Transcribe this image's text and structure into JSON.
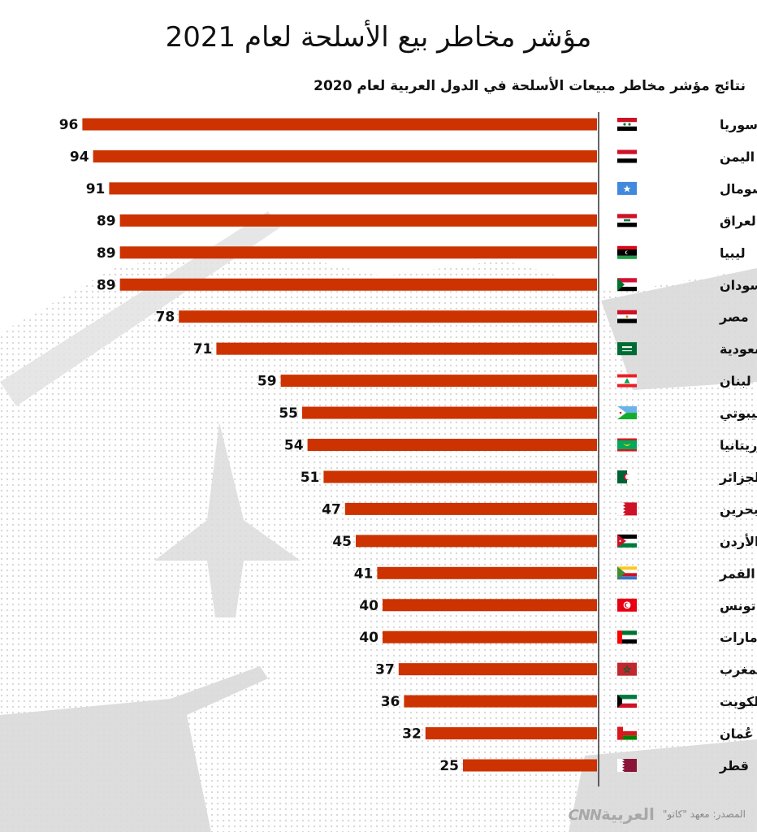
{
  "title": "مؤشر مخاطر بيع الأسلحة لعام 2021",
  "subtitle": "نتائج مؤشر مخاطر مبيعات الأسلحة في الدول العربية لعام 2020",
  "footer": {
    "source": "المصدر: معهد \"كاتو\"",
    "logo_arabic": "العربية",
    "logo_latin": "CNN"
  },
  "colors": {
    "bar": "#cc3300",
    "axis": "#333333",
    "text": "#111111"
  },
  "chart_data": {
    "type": "bar",
    "orientation": "horizontal",
    "title": "مؤشر مخاطر بيع الأسلحة لعام 2021",
    "subtitle": "نتائج مؤشر مخاطر مبيعات الأسلحة في الدول العربية لعام 2020",
    "categories": [
      "سوريا",
      "اليمن",
      "الصومال",
      "العراق",
      "ليبيا",
      "السودان",
      "مصر",
      "السعودية",
      "لبنان",
      "جيبوتي",
      "موريتانيا",
      "الجزائر",
      "البحرين",
      "الأردن",
      "جزر القمر",
      "تونس",
      "الإمارات",
      "المغرب",
      "الكويت",
      "عُمان",
      "قطر"
    ],
    "flags": [
      "syria-flag-icon",
      "yemen-flag-icon",
      "somalia-flag-icon",
      "iraq-flag-icon",
      "libya-flag-icon",
      "sudan-flag-icon",
      "egypt-flag-icon",
      "saudi-flag-icon",
      "lebanon-flag-icon",
      "djibouti-flag-icon",
      "mauritania-flag-icon",
      "algeria-flag-icon",
      "bahrain-flag-icon",
      "jordan-flag-icon",
      "comoros-flag-icon",
      "tunisia-flag-icon",
      "uae-flag-icon",
      "morocco-flag-icon",
      "kuwait-flag-icon",
      "oman-flag-icon",
      "qatar-flag-icon"
    ],
    "values": [
      96,
      94,
      91,
      89,
      89,
      89,
      78,
      71,
      59,
      55,
      54,
      51,
      47,
      45,
      41,
      40,
      40,
      37,
      36,
      32,
      25
    ],
    "xlim": [
      0,
      100
    ],
    "bar_direction": "right-to-left",
    "grid": false,
    "legend": "none"
  }
}
